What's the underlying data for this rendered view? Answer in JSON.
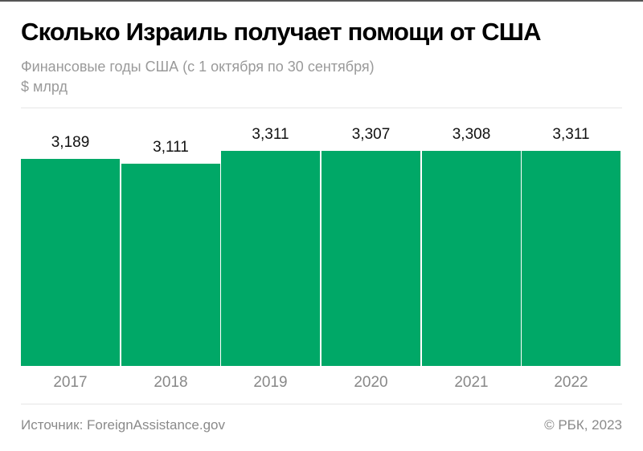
{
  "header": {
    "title": "Сколько Израиль получает помощи от США",
    "subtitle": "Финансовые годы США (с 1 октября по 30 сентября)",
    "unit": "$ млрд"
  },
  "footer": {
    "source": "Источник: ForeignAssistance.gov",
    "copyright": "© РБК, 2023"
  },
  "colors": {
    "bar": "#00a867",
    "title": "#000000",
    "muted": "#9a9a9a"
  },
  "chart_data": {
    "type": "bar",
    "title": "Сколько Израиль получает помощи от США",
    "subtitle": "Финансовые годы США (с 1 октября по 30 сентября)",
    "xlabel": "",
    "ylabel": "$ млрд",
    "categories": [
      "2017",
      "2018",
      "2019",
      "2020",
      "2021",
      "2022"
    ],
    "values": [
      3.189,
      3.111,
      3.311,
      3.307,
      3.308,
      3.311
    ],
    "labels": [
      "3,189",
      "3,111",
      "3,311",
      "3,307",
      "3,308",
      "3,311"
    ],
    "grid": false,
    "legend": null
  }
}
